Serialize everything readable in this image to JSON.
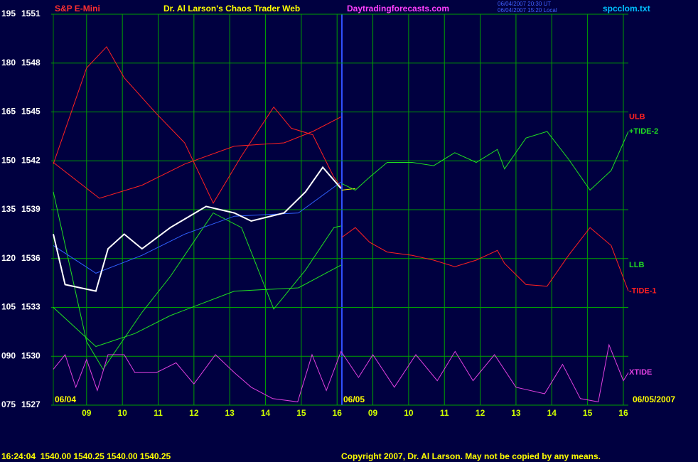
{
  "chart_data": {
    "type": "line",
    "title": "Dr. Al Larson's Chaos Trader Web",
    "instrument": "S&P E-Mini",
    "website": "Daytradingforecasts.com",
    "timestamp_ut": "06/04/2007 20:30 UT",
    "timestamp_local": "06/04/2007 15:20 Local",
    "file_name": "spcclom.txt",
    "date_labels": [
      "06/04",
      "06/05",
      "06/05/2007"
    ],
    "quote_line": "16:24:04  1540.00 1540.25 1540.00 1540.25",
    "copyright": "Copyright 2007, Dr. Al Larson. May not be copied by any means.",
    "ylim": [
      1527,
      1551
    ],
    "yticks": [
      1551,
      1548,
      1545,
      1542,
      1539,
      1536,
      1533,
      1530,
      1527
    ],
    "y2lim": [
      75,
      195
    ],
    "y2ticks": [
      195,
      180,
      165,
      150,
      135,
      120,
      105,
      {
        "value": 90,
        "label": "090"
      },
      {
        "value": 75,
        "label": "075"
      }
    ],
    "xlim": [
      -0.93,
      15.14
    ],
    "xticks": [
      {
        "value": 0,
        "label": "09"
      },
      {
        "value": 1,
        "label": "10"
      },
      {
        "value": 2,
        "label": "11"
      },
      {
        "value": 3,
        "label": "12"
      },
      {
        "value": 4,
        "label": "13"
      },
      {
        "value": 5,
        "label": "14"
      },
      {
        "value": 6,
        "label": "15"
      },
      {
        "value": 7,
        "label": "16"
      },
      {
        "value": 8,
        "label": "09"
      },
      {
        "value": 9,
        "label": "10"
      },
      {
        "value": 10,
        "label": "11"
      },
      {
        "value": 11,
        "label": "12"
      },
      {
        "value": 12,
        "label": "13"
      },
      {
        "value": 13,
        "label": "14"
      },
      {
        "value": 14,
        "label": "15"
      },
      {
        "value": 15,
        "label": "16"
      }
    ],
    "grid": true,
    "series": [
      {
        "color": "#ff2020",
        "x": [
          -0.93,
          0,
          0.56,
          1.05,
          1.95,
          2.74,
          3.54,
          4.33,
          5.23,
          5.72,
          6.32,
          6.91,
          7.11
        ],
        "values": [
          1541.8,
          1547.7,
          1549.0,
          1547.1,
          1544.9,
          1543.1,
          1539.4,
          1542.3,
          1545.3,
          1544.0,
          1543.6,
          1541.0,
          1540.4
        ]
      },
      {
        "color": "#20e020",
        "x": [
          -0.93,
          0,
          0.46,
          1.55,
          2.34,
          3.54,
          4.33,
          5.23,
          6.12,
          6.91,
          7.11
        ],
        "values": [
          1540.1,
          1530.9,
          1529.2,
          1532.7,
          1534.9,
          1538.8,
          1537.9,
          1532.9,
          1535.3,
          1537.9,
          1538.0
        ]
      },
      {
        "name": "ULB",
        "color": "#ff2020",
        "x": [
          -0.93,
          0.36,
          1.55,
          2.74,
          4.13,
          5.52,
          6.32,
          7.11
        ],
        "values": [
          1541.9,
          1539.7,
          1540.5,
          1541.8,
          1542.9,
          1543.1,
          1543.8,
          1544.7
        ]
      },
      {
        "name": "LLB",
        "color": "#20e020",
        "x": [
          -0.93,
          0.26,
          1.35,
          2.34,
          4.13,
          5.92,
          7.11
        ],
        "values": [
          1533.0,
          1530.6,
          1531.4,
          1532.5,
          1534.0,
          1534.2,
          1535.6
        ]
      },
      {
        "color": "#3060ff",
        "x": [
          -0.93,
          0.26,
          1.55,
          2.74,
          4.13,
          5.92,
          7.11
        ],
        "values": [
          1536.8,
          1535.1,
          1536.2,
          1537.5,
          1538.6,
          1538.8,
          1540.7
        ]
      },
      {
        "color": "#ffffff",
        "x": [
          -0.93,
          -0.6,
          0.26,
          0.6,
          1.05,
          1.55,
          2.34,
          3.34,
          4.13,
          4.6,
          5.52,
          6.12,
          6.6,
          7.11
        ],
        "values": [
          1537.5,
          1534.4,
          1534.0,
          1536.6,
          1537.5,
          1536.6,
          1537.9,
          1539.2,
          1538.8,
          1538.3,
          1538.8,
          1540.1,
          1541.6,
          1540.3
        ]
      },
      {
        "color": "#ffff00",
        "x": [
          7.13,
          7.51
        ],
        "values": [
          1540.2,
          1540.3
        ]
      },
      {
        "name": "+TIDE-2",
        "color": "#20e020",
        "x": [
          7.13,
          7.51,
          7.91,
          8.4,
          9.1,
          9.7,
          10.29,
          10.89,
          11.48,
          11.68,
          12.28,
          12.87,
          13.47,
          14.07,
          14.66,
          15.14
        ],
        "values": [
          1540.6,
          1540.2,
          1541.0,
          1541.9,
          1541.9,
          1541.7,
          1542.5,
          1541.9,
          1542.7,
          1541.5,
          1543.4,
          1543.8,
          1542.1,
          1540.2,
          1541.4,
          1543.8
        ]
      },
      {
        "name": "-TIDE-1",
        "color": "#ff2020",
        "x": [
          7.13,
          7.51,
          7.91,
          8.4,
          9.1,
          9.7,
          10.29,
          10.89,
          11.48,
          11.68,
          12.28,
          12.87,
          13.47,
          14.07,
          14.66,
          15.14
        ],
        "values": [
          1537.3,
          1537.9,
          1537.0,
          1536.4,
          1536.2,
          1535.9,
          1535.5,
          1535.9,
          1536.5,
          1535.7,
          1534.4,
          1534.3,
          1536.2,
          1537.9,
          1536.8,
          1534.0
        ]
      },
      {
        "name": "XTIDE",
        "color": "#e040e0",
        "x": [
          -0.93,
          -0.6,
          -0.3,
          0,
          0.3,
          0.6,
          1.05,
          1.35,
          1.95,
          2.5,
          3.0,
          3.6,
          4.13,
          4.6,
          5.2,
          5.9,
          6.3,
          6.7,
          7.11,
          7.6,
          8.0,
          8.6,
          9.2,
          9.8,
          10.3,
          10.8,
          11.4,
          12.0,
          12.8,
          13.3,
          13.8,
          14.3,
          14.6,
          15.0,
          15.14
        ],
        "values": [
          1529.2,
          1530.1,
          1528.1,
          1529.8,
          1527.9,
          1530.1,
          1530.1,
          1529.0,
          1529.0,
          1529.6,
          1528.3,
          1530.1,
          1529.0,
          1528.1,
          1527.4,
          1527.2,
          1530.1,
          1527.9,
          1530.3,
          1528.7,
          1530.1,
          1528.1,
          1530.1,
          1528.5,
          1530.3,
          1528.5,
          1530.1,
          1528.1,
          1527.7,
          1529.5,
          1527.4,
          1527.2,
          1530.7,
          1528.5,
          1529.0
        ]
      }
    ]
  }
}
